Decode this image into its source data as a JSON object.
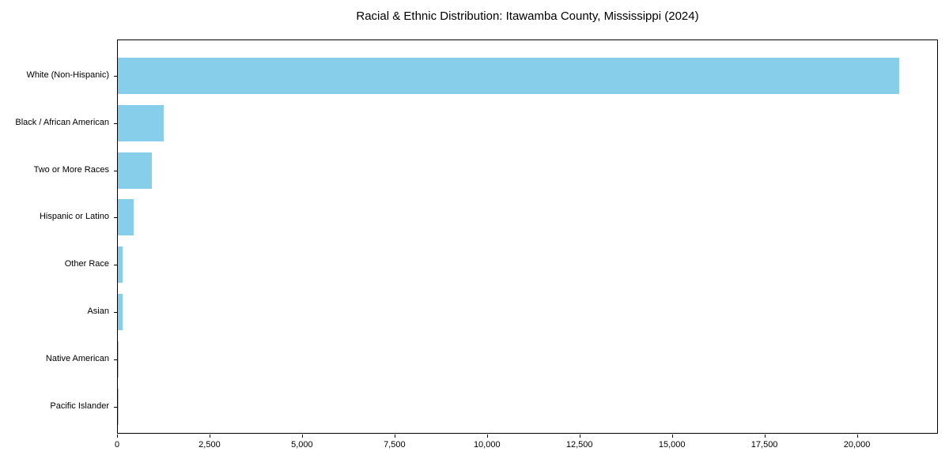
{
  "figure": {
    "background": "#ffffff"
  },
  "chart_data": {
    "type": "bar",
    "orientation": "horizontal",
    "title": "Racial & Ethnic Distribution: Itawamba County, Mississippi (2024)",
    "categories": [
      "White (Non-Hispanic)",
      "Black / African American",
      "Two or More Races",
      "Hispanic or Latino",
      "Other Race",
      "Asian",
      "Native American",
      "Pacific Islander"
    ],
    "values": [
      21130,
      1230,
      910,
      430,
      130,
      120,
      15,
      5
    ],
    "xlabel": "",
    "ylabel": "",
    "xlim": [
      0,
      22190
    ],
    "xticks": [
      {
        "value": 0,
        "label": "0"
      },
      {
        "value": 2500,
        "label": "2,500"
      },
      {
        "value": 5000,
        "label": "5,000"
      },
      {
        "value": 7500,
        "label": "7,500"
      },
      {
        "value": 10000,
        "label": "10,000"
      },
      {
        "value": 12500,
        "label": "12,500"
      },
      {
        "value": 15000,
        "label": "15,000"
      },
      {
        "value": 17500,
        "label": "17,500"
      },
      {
        "value": 20000,
        "label": "20,000"
      }
    ],
    "grid": false,
    "legend_position": "none",
    "bar_color": "#87CEEB",
    "axis_color": "#000000",
    "text_color": "#000000"
  }
}
